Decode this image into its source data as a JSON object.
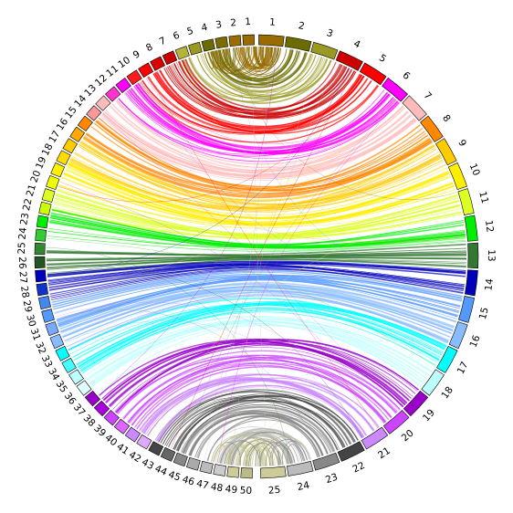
{
  "left_segments": [
    {
      "label": "1",
      "color": "#9a6b00"
    },
    {
      "label": "2",
      "color": "#9a6b00"
    },
    {
      "label": "3",
      "color": "#7b6b00"
    },
    {
      "label": "4",
      "color": "#6b6b00"
    },
    {
      "label": "5",
      "color": "#9a9a22"
    },
    {
      "label": "6",
      "color": "#b4b43a"
    },
    {
      "label": "7",
      "color": "#cc0000"
    },
    {
      "label": "8",
      "color": "#dd0000"
    },
    {
      "label": "9",
      "color": "#ff0000"
    },
    {
      "label": "10",
      "color": "#ff1b1b"
    },
    {
      "label": "11",
      "color": "#ff00ff"
    },
    {
      "label": "12",
      "color": "#ff33cc"
    },
    {
      "label": "13",
      "color": "#ffbbbb"
    },
    {
      "label": "14",
      "color": "#ff9999"
    },
    {
      "label": "15",
      "color": "#ff8800"
    },
    {
      "label": "16",
      "color": "#ffaa00"
    },
    {
      "label": "17",
      "color": "#ffcc00"
    },
    {
      "label": "18",
      "color": "#ffdd00"
    },
    {
      "label": "19",
      "color": "#ffee00"
    },
    {
      "label": "20",
      "color": "#eeff00"
    },
    {
      "label": "21",
      "color": "#ddff22"
    },
    {
      "label": "22",
      "color": "#ccff00"
    },
    {
      "label": "23",
      "color": "#00ee00"
    },
    {
      "label": "24",
      "color": "#33cc33"
    },
    {
      "label": "25",
      "color": "#338833"
    },
    {
      "label": "26",
      "color": "#225522"
    },
    {
      "label": "27",
      "color": "#0000bb"
    },
    {
      "label": "28",
      "color": "#1133cc"
    },
    {
      "label": "29",
      "color": "#4488ee"
    },
    {
      "label": "30",
      "color": "#5599ff"
    },
    {
      "label": "31",
      "color": "#77aaff"
    },
    {
      "label": "32",
      "color": "#88bbff"
    },
    {
      "label": "33",
      "color": "#00ffff"
    },
    {
      "label": "34",
      "color": "#44ffff"
    },
    {
      "label": "35",
      "color": "#bbffff"
    },
    {
      "label": "36",
      "color": "#ddffff"
    },
    {
      "label": "37",
      "color": "#9900cc"
    },
    {
      "label": "38",
      "color": "#aa00dd"
    },
    {
      "label": "39",
      "color": "#cc44ff"
    },
    {
      "label": "40",
      "color": "#dd66ff"
    },
    {
      "label": "41",
      "color": "#cc88ff"
    },
    {
      "label": "42",
      "color": "#ddaaff"
    },
    {
      "label": "43",
      "color": "#444444"
    },
    {
      "label": "44",
      "color": "#666666"
    },
    {
      "label": "45",
      "color": "#888888"
    },
    {
      "label": "46",
      "color": "#aaaaaa"
    },
    {
      "label": "47",
      "color": "#bbbbbb"
    },
    {
      "label": "48",
      "color": "#cccccc"
    },
    {
      "label": "49",
      "color": "#cccc99"
    },
    {
      "label": "50",
      "color": "#bbbb88"
    }
  ],
  "right_segments": [
    {
      "label": "1",
      "color": "#9a6b00"
    },
    {
      "label": "2",
      "color": "#6b6b00"
    },
    {
      "label": "3",
      "color": "#9a9a22"
    },
    {
      "label": "4",
      "color": "#cc0000"
    },
    {
      "label": "5",
      "color": "#ff0000"
    },
    {
      "label": "6",
      "color": "#ff00ff"
    },
    {
      "label": "7",
      "color": "#ffbbbb"
    },
    {
      "label": "8",
      "color": "#ff8800"
    },
    {
      "label": "9",
      "color": "#ffcc00"
    },
    {
      "label": "10",
      "color": "#ffee00"
    },
    {
      "label": "11",
      "color": "#ddff22"
    },
    {
      "label": "12",
      "color": "#00ee00"
    },
    {
      "label": "13",
      "color": "#337733"
    },
    {
      "label": "14",
      "color": "#0000bb"
    },
    {
      "label": "15",
      "color": "#5599ff"
    },
    {
      "label": "16",
      "color": "#88bbff"
    },
    {
      "label": "17",
      "color": "#00ffff"
    },
    {
      "label": "18",
      "color": "#bbffff"
    },
    {
      "label": "19",
      "color": "#9900cc"
    },
    {
      "label": "20",
      "color": "#cc44ff"
    },
    {
      "label": "21",
      "color": "#cc88ff"
    },
    {
      "label": "22",
      "color": "#444444"
    },
    {
      "label": "23",
      "color": "#888888"
    },
    {
      "label": "24",
      "color": "#bbbbbb"
    },
    {
      "label": "25",
      "color": "#cccc99"
    }
  ]
}
